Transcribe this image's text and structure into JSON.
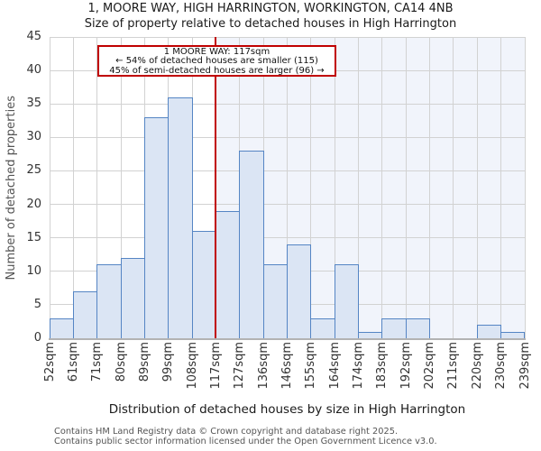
{
  "chart_data": {
    "type": "bar",
    "title": "1, MOORE WAY, HIGH HARRINGTON, WORKINGTON, CA14 4NB",
    "subtitle": "Size of property relative to detached houses in High Harrington",
    "xlabel": "Distribution of detached houses by size in High Harrington",
    "ylabel": "Number of detached properties",
    "categories": [
      "52sqm",
      "61sqm",
      "71sqm",
      "80sqm",
      "89sqm",
      "99sqm",
      "108sqm",
      "117sqm",
      "127sqm",
      "136sqm",
      "146sqm",
      "155sqm",
      "164sqm",
      "174sqm",
      "183sqm",
      "192sqm",
      "202sqm",
      "211sqm",
      "220sqm",
      "230sqm",
      "239sqm"
    ],
    "values": [
      3,
      7,
      11,
      12,
      33,
      36,
      16,
      19,
      28,
      11,
      14,
      3,
      11,
      1,
      3,
      3,
      0,
      0,
      2,
      1
    ],
    "ylim": [
      0,
      45
    ],
    "yticks": [
      0,
      5,
      10,
      15,
      20,
      25,
      30,
      35,
      40,
      45
    ],
    "grid": true,
    "legend": "none",
    "marker": {
      "label": "117sqm",
      "bin_index": 7,
      "shade_right_of_marker": true
    },
    "annotation": {
      "line1": "1 MOORE WAY: 117sqm",
      "line2": "← 54% of detached houses are smaller (115)",
      "line3": "45% of semi-detached houses are larger (96) →"
    }
  },
  "colors": {
    "bar_fill": "#dbe5f4",
    "bar_border": "#5585c4",
    "marker_line": "#c00000",
    "annotation_border": "#c00000",
    "shade": "#f1f4fb",
    "grid": "#d2d2d2",
    "axis": "#b3b3b3"
  },
  "footer": {
    "line1": "Contains HM Land Registry data © Crown copyright and database right 2025.",
    "line2": "Contains public sector information licensed under the Open Government Licence v3.0."
  }
}
